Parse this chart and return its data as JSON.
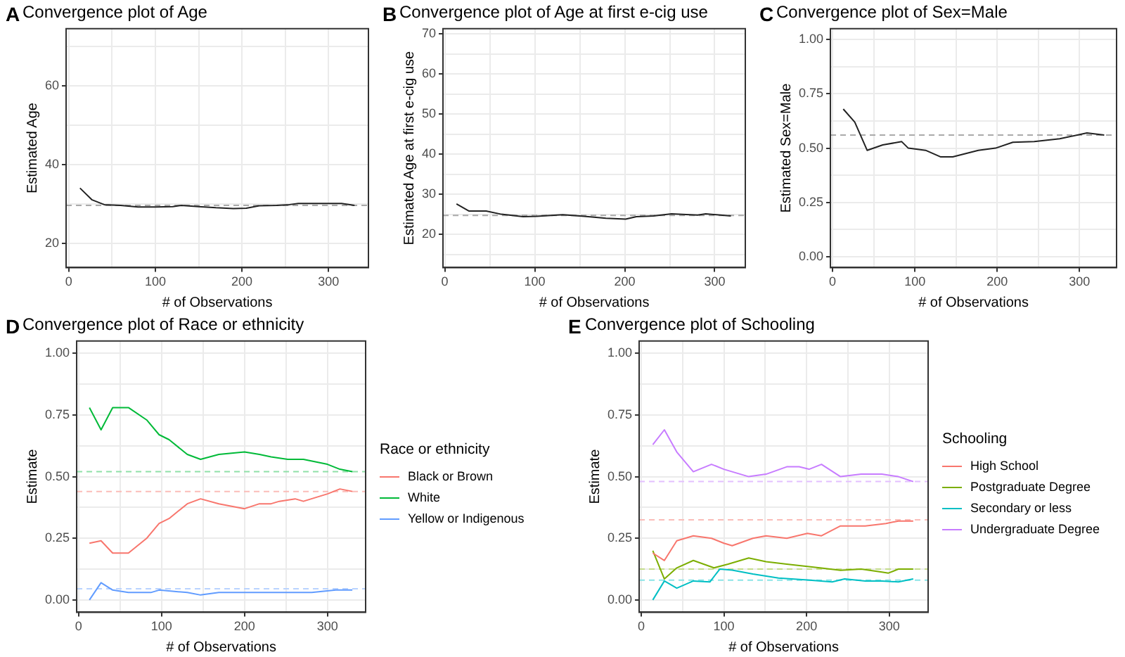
{
  "chart_data": [
    {
      "type": "line",
      "title": "Convergence plot of Age",
      "annotations": [
        "A"
      ],
      "xlabel": "# of Observations",
      "ylabel": "Estimated Age",
      "xlim": [
        -3,
        346
      ],
      "xticks": [
        0,
        {
          "value": 50,
          "label": null
        },
        100,
        {
          "value": 150,
          "label": null
        },
        200,
        {
          "value": 250,
          "label": null
        },
        300
      ],
      "ylim": [
        13.8,
        74.5
      ],
      "yticks": [
        20,
        {
          "value": 30,
          "label": null
        },
        40,
        {
          "value": 50,
          "label": null
        },
        60,
        {
          "value": 70,
          "label": null
        }
      ],
      "grid": true,
      "legend": false,
      "marker": "none",
      "line_style": "solid",
      "series": [
        {
          "color": "#222222",
          "x": [
            13,
            27,
            41,
            60,
            80,
            100,
            120,
            130,
            150,
            170,
            190,
            205,
            220,
            240,
            255,
            265,
            290,
            315,
            330
          ],
          "values": [
            34,
            31,
            29.8,
            29.6,
            29.2,
            29.2,
            29.3,
            29.6,
            29.3,
            29.0,
            28.8,
            28.9,
            29.5,
            29.6,
            29.8,
            30.1,
            30.1,
            30.1,
            29.6
          ]
        }
      ],
      "ref_lines": [
        {
          "axis": "y",
          "value": 29.6,
          "color": "#aaaaaa",
          "line_style": "dashed"
        }
      ]
    },
    {
      "type": "line",
      "title": "Convergence plot of Age at first e-cig use",
      "annotations": [
        "B"
      ],
      "xlabel": "# of Observations",
      "ylabel": "Estimated Age at first e-cig use",
      "xlim": [
        -2,
        334
      ],
      "xticks": [
        0,
        {
          "value": 50,
          "label": null
        },
        100,
        {
          "value": 150,
          "label": null
        },
        200,
        {
          "value": 250,
          "label": null
        },
        300
      ],
      "ylim": [
        11.7,
        71.3
      ],
      "yticks": [
        {
          "value": 15,
          "label": null
        },
        20,
        {
          "value": 25,
          "label": null
        },
        30,
        {
          "value": 35,
          "label": null
        },
        40,
        {
          "value": 45,
          "label": null
        },
        50,
        {
          "value": 55,
          "label": null
        },
        60,
        {
          "value": 65,
          "label": null
        },
        70
      ],
      "grid": true,
      "legend": false,
      "marker": "none",
      "line_style": "solid",
      "series": [
        {
          "color": "#222222",
          "x": [
            13,
            27,
            46,
            63,
            87,
            102,
            131,
            155,
            179,
            201,
            213,
            232,
            252,
            281,
            290,
            318
          ],
          "values": [
            27.6,
            25.8,
            25.8,
            25.0,
            24.4,
            24.5,
            24.9,
            24.5,
            24.0,
            23.8,
            24.4,
            24.6,
            25.1,
            24.8,
            25.1,
            24.6
          ]
        }
      ],
      "ref_lines": [
        {
          "axis": "y",
          "value": 24.7,
          "color": "#aaaaaa",
          "line_style": "dashed"
        }
      ]
    },
    {
      "type": "line",
      "title": "Convergence plot of Sex=Male",
      "annotations": [
        "C"
      ],
      "xlabel": "# of Observations",
      "ylabel": "Estimated Sex=Male",
      "xlim": [
        -2.6,
        345
      ],
      "xticks": [
        0,
        {
          "value": 50,
          "label": null
        },
        100,
        {
          "value": 150,
          "label": null
        },
        200,
        {
          "value": 250,
          "label": null
        },
        300
      ],
      "ylim": [
        -0.05,
        1.05
      ],
      "yticks": [
        {
          "value": 0,
          "label": "0.00"
        },
        {
          "value": 0.125,
          "label": null
        },
        {
          "value": 0.25,
          "label": "0.25"
        },
        {
          "value": 0.375,
          "label": null
        },
        {
          "value": 0.5,
          "label": "0.50"
        },
        {
          "value": 0.625,
          "label": null
        },
        {
          "value": 0.75,
          "label": "0.75"
        },
        {
          "value": 0.875,
          "label": null
        },
        {
          "value": 1,
          "label": "1.00"
        }
      ],
      "grid": true,
      "legend": false,
      "marker": "none",
      "line_style": "solid",
      "series": [
        {
          "color": "#222222",
          "x": [
            13,
            27,
            42,
            61,
            84,
            92,
            113,
            131,
            146,
            177,
            198,
            219,
            245,
            276,
            309,
            330
          ],
          "values": [
            0.68,
            0.62,
            0.49,
            0.515,
            0.53,
            0.5,
            0.49,
            0.46,
            0.46,
            0.49,
            0.5,
            0.527,
            0.53,
            0.543,
            0.57,
            0.56
          ]
        }
      ],
      "ref_lines": [
        {
          "axis": "y",
          "value": 0.56,
          "color": "#aaaaaa",
          "line_style": "dashed"
        }
      ]
    },
    {
      "type": "line",
      "title": "Convergence plot of Race or ethnicity",
      "annotations": [
        "D"
      ],
      "xlabel": "# of Observations",
      "ylabel": "Estimate",
      "legend_title": "Race or ethnicity",
      "xlim": [
        -2.4,
        346
      ],
      "xticks": [
        0,
        {
          "value": 50,
          "label": null
        },
        100,
        {
          "value": 150,
          "label": null
        },
        200,
        {
          "value": 250,
          "label": null
        },
        300
      ],
      "ylim": [
        -0.05,
        1.05
      ],
      "yticks": [
        {
          "value": 0,
          "label": "0.00"
        },
        {
          "value": 0.125,
          "label": null
        },
        {
          "value": 0.25,
          "label": "0.25"
        },
        {
          "value": 0.375,
          "label": null
        },
        {
          "value": 0.5,
          "label": "0.50"
        },
        {
          "value": 0.625,
          "label": null
        },
        {
          "value": 0.75,
          "label": "0.75"
        },
        {
          "value": 0.875,
          "label": null
        },
        {
          "value": 1,
          "label": "1.00"
        }
      ],
      "grid": true,
      "legend": "right",
      "marker": "none",
      "line_style": "solid",
      "series": [
        {
          "name": "Black or Brown",
          "color": "#f8766d",
          "x": [
            13,
            27,
            41,
            60,
            82,
            97,
            109,
            131,
            147,
            169,
            200,
            218,
            232,
            242,
            261,
            271,
            300,
            315,
            330
          ],
          "values": [
            0.23,
            0.24,
            0.19,
            0.19,
            0.25,
            0.31,
            0.33,
            0.39,
            0.41,
            0.39,
            0.37,
            0.39,
            0.39,
            0.4,
            0.41,
            0.4,
            0.43,
            0.45,
            0.44
          ]
        },
        {
          "name": "White",
          "color": "#00ba38",
          "x": [
            13,
            27,
            41,
            60,
            82,
            97,
            109,
            131,
            147,
            169,
            200,
            218,
            232,
            252,
            261,
            271,
            300,
            315,
            330
          ],
          "values": [
            0.78,
            0.69,
            0.78,
            0.78,
            0.73,
            0.67,
            0.65,
            0.59,
            0.57,
            0.59,
            0.6,
            0.59,
            0.58,
            0.57,
            0.57,
            0.57,
            0.55,
            0.53,
            0.52
          ]
        },
        {
          "name": "Yellow or Indigenous",
          "color": "#619cff",
          "x": [
            13,
            27,
            41,
            60,
            87,
            97,
            131,
            147,
            169,
            200,
            232,
            252,
            281,
            310,
            330
          ],
          "values": [
            0.0,
            0.07,
            0.04,
            0.03,
            0.03,
            0.04,
            0.03,
            0.02,
            0.03,
            0.03,
            0.03,
            0.03,
            0.03,
            0.04,
            0.04
          ]
        }
      ],
      "ref_lines": [
        {
          "axis": "y",
          "value": 0.52,
          "color": "#8fe0a8",
          "line_style": "dashed"
        },
        {
          "axis": "y",
          "value": 0.44,
          "color": "#fbbdb8",
          "line_style": "dashed"
        },
        {
          "axis": "y",
          "value": 0.045,
          "color": "#b9d3ff",
          "line_style": "dashed"
        }
      ]
    },
    {
      "type": "line",
      "title": "Convergence plot of Schooling",
      "annotations": [
        "E"
      ],
      "xlabel": "# of Observations",
      "ylabel": "Estimate",
      "legend_title": "Schooling",
      "xlim": [
        -2.5,
        347
      ],
      "xticks": [
        0,
        {
          "value": 50,
          "label": null
        },
        100,
        {
          "value": 150,
          "label": null
        },
        200,
        {
          "value": 250,
          "label": null
        },
        300
      ],
      "ylim": [
        -0.05,
        1.05
      ],
      "yticks": [
        {
          "value": 0,
          "label": "0.00"
        },
        {
          "value": 0.125,
          "label": null
        },
        {
          "value": 0.25,
          "label": "0.25"
        },
        {
          "value": 0.375,
          "label": null
        },
        {
          "value": 0.5,
          "label": "0.50"
        },
        {
          "value": 0.625,
          "label": null
        },
        {
          "value": 0.75,
          "label": "0.75"
        },
        {
          "value": 0.875,
          "label": null
        },
        {
          "value": 1,
          "label": "1.00"
        }
      ],
      "grid": true,
      "legend": "right",
      "marker": "none",
      "line_style": "solid",
      "series": [
        {
          "name": "High School",
          "color": "#f8766d",
          "x": [
            14,
            28,
            43,
            63,
            85,
            100,
            110,
            135,
            151,
            176,
            201,
            218,
            241,
            271,
            296,
            311,
            329
          ],
          "values": [
            0.19,
            0.16,
            0.24,
            0.26,
            0.25,
            0.23,
            0.22,
            0.25,
            0.26,
            0.25,
            0.27,
            0.26,
            0.3,
            0.3,
            0.31,
            0.32,
            0.32
          ]
        },
        {
          "name": "Postgraduate Degree",
          "color": "#7cae00",
          "x": [
            14,
            28,
            43,
            63,
            88,
            105,
            130,
            151,
            176,
            216,
            241,
            266,
            291,
            299,
            311,
            329
          ],
          "values": [
            0.2,
            0.085,
            0.13,
            0.16,
            0.13,
            0.145,
            0.17,
            0.155,
            0.145,
            0.13,
            0.12,
            0.125,
            0.113,
            0.109,
            0.125,
            0.125
          ]
        },
        {
          "name": "Secondary or less",
          "color": "#00bfc4",
          "x": [
            14,
            28,
            43,
            63,
            83,
            95,
            110,
            135,
            166,
            201,
            231,
            246,
            271,
            291,
            311,
            329
          ],
          "values": [
            0.0,
            0.077,
            0.048,
            0.077,
            0.073,
            0.125,
            0.121,
            0.105,
            0.089,
            0.081,
            0.073,
            0.085,
            0.077,
            0.077,
            0.073,
            0.085
          ]
        },
        {
          "name": "Undergraduate Degree",
          "color": "#c77cff",
          "x": [
            14,
            28,
            43,
            63,
            85,
            100,
            130,
            151,
            176,
            191,
            203,
            218,
            241,
            266,
            291,
            311,
            329
          ],
          "values": [
            0.63,
            0.69,
            0.6,
            0.52,
            0.55,
            0.53,
            0.5,
            0.51,
            0.54,
            0.54,
            0.53,
            0.55,
            0.5,
            0.51,
            0.51,
            0.5,
            0.48
          ]
        }
      ],
      "ref_lines": [
        {
          "axis": "y",
          "value": 0.48,
          "color": "#e3c0ff",
          "line_style": "dashed"
        },
        {
          "axis": "y",
          "value": 0.325,
          "color": "#fbbdb8",
          "line_style": "dashed"
        },
        {
          "axis": "y",
          "value": 0.125,
          "color": "#c4dc8c",
          "line_style": "dashed"
        },
        {
          "axis": "y",
          "value": 0.08,
          "color": "#8ae4e6",
          "line_style": "dashed"
        }
      ]
    }
  ]
}
